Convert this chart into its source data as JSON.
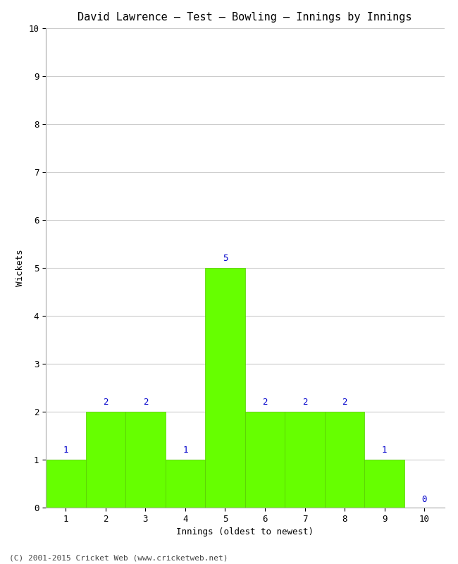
{
  "title": "David Lawrence – Test – Bowling – Innings by Innings",
  "xlabel": "Innings (oldest to newest)",
  "ylabel": "Wickets",
  "bar_color": "#66ff00",
  "bar_edge_color": "#55cc00",
  "categories": [
    1,
    2,
    3,
    4,
    5,
    6,
    7,
    8,
    9,
    10
  ],
  "values": [
    1,
    2,
    2,
    1,
    5,
    2,
    2,
    2,
    1,
    0
  ],
  "ylim": [
    0,
    10
  ],
  "xlim": [
    0.5,
    10.5
  ],
  "yticks": [
    0,
    1,
    2,
    3,
    4,
    5,
    6,
    7,
    8,
    9,
    10
  ],
  "xticks": [
    1,
    2,
    3,
    4,
    5,
    6,
    7,
    8,
    9,
    10
  ],
  "label_color": "#0000cc",
  "background_color": "#ffffff",
  "grid_color": "#cccccc",
  "footer_text": "(C) 2001-2015 Cricket Web (www.cricketweb.net)",
  "title_fontsize": 11,
  "axis_fontsize": 9,
  "label_fontsize": 9,
  "footer_fontsize": 8
}
